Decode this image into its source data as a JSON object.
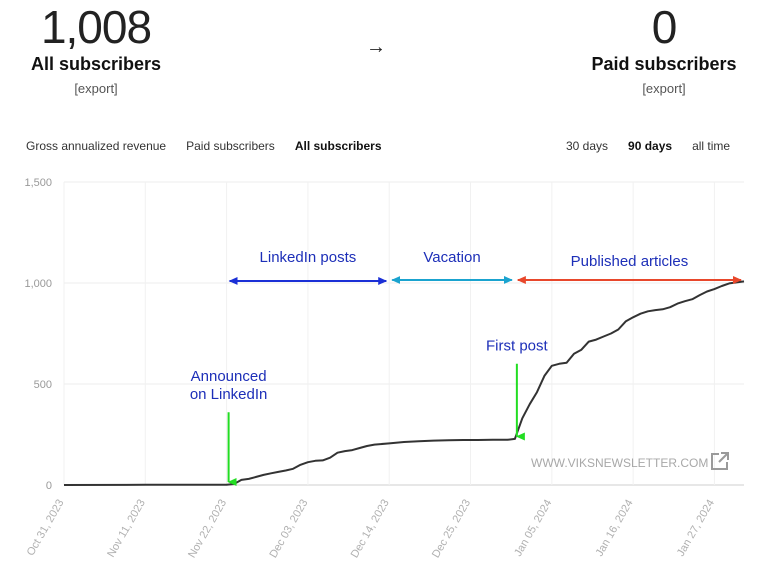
{
  "summary": {
    "all_count": "1,008",
    "all_label": "All subscribers",
    "all_export": "[export]",
    "arrow": "→",
    "paid_count": "0",
    "paid_label": "Paid subscribers",
    "paid_export": "[export]"
  },
  "metric_tabs": [
    {
      "label": "Gross annualized revenue",
      "active": false
    },
    {
      "label": "Paid subscribers",
      "active": false
    },
    {
      "label": "All subscribers",
      "active": true
    }
  ],
  "range_tabs": [
    {
      "label": "30 days",
      "active": false
    },
    {
      "label": "90 days",
      "active": true
    },
    {
      "label": "all time",
      "active": false
    }
  ],
  "watermark": "WWW.VIKSNEWSLETTER.COM",
  "external_link_icon": "external-link-icon",
  "chart_data": {
    "type": "line",
    "ylim": [
      0,
      1500
    ],
    "y_ticks": [
      0,
      500,
      1000,
      1500
    ],
    "y_tick_labels": [
      "0",
      "500",
      "1,000",
      "1,500"
    ],
    "xlim": [
      "2023-10-31",
      "2024-01-31"
    ],
    "x_ticks": [
      "2023-10-31",
      "2023-11-11",
      "2023-11-22",
      "2023-12-03",
      "2023-12-14",
      "2023-12-25",
      "2024-01-05",
      "2024-01-16",
      "2024-01-27"
    ],
    "x_tick_labels": [
      "Oct 31, 2023",
      "Nov 11, 2023",
      "Nov 22, 2023",
      "Dec 03, 2023",
      "Dec 14, 2023",
      "Dec 25, 2023",
      "Jan 05, 2024",
      "Jan 16, 2024",
      "Jan 27, 2024"
    ],
    "series": [
      {
        "color": "#333333",
        "points": [
          [
            "2023-10-31",
            0
          ],
          [
            "2023-11-11",
            1
          ],
          [
            "2023-11-22",
            1
          ],
          [
            "2023-11-23",
            5
          ],
          [
            "2023-11-24",
            25
          ],
          [
            "2023-11-25",
            30
          ],
          [
            "2023-11-26",
            40
          ],
          [
            "2023-11-27",
            50
          ],
          [
            "2023-11-28",
            58
          ],
          [
            "2023-11-29",
            65
          ],
          [
            "2023-11-30",
            72
          ],
          [
            "2023-12-01",
            80
          ],
          [
            "2023-12-02",
            100
          ],
          [
            "2023-12-03",
            113
          ],
          [
            "2023-12-04",
            120
          ],
          [
            "2023-12-05",
            122
          ],
          [
            "2023-12-06",
            135
          ],
          [
            "2023-12-07",
            160
          ],
          [
            "2023-12-08",
            168
          ],
          [
            "2023-12-09",
            173
          ],
          [
            "2023-12-10",
            183
          ],
          [
            "2023-12-11",
            193
          ],
          [
            "2023-12-12",
            200
          ],
          [
            "2023-12-14",
            206
          ],
          [
            "2023-12-16",
            213
          ],
          [
            "2023-12-18",
            217
          ],
          [
            "2023-12-20",
            220
          ],
          [
            "2023-12-22",
            222
          ],
          [
            "2023-12-24",
            223
          ],
          [
            "2023-12-26",
            223
          ],
          [
            "2023-12-28",
            224
          ],
          [
            "2023-12-30",
            224
          ],
          [
            "2023-12-31",
            228
          ],
          [
            "2024-01-01",
            330
          ],
          [
            "2024-01-02",
            400
          ],
          [
            "2024-01-03",
            460
          ],
          [
            "2024-01-04",
            540
          ],
          [
            "2024-01-05",
            590
          ],
          [
            "2024-01-06",
            600
          ],
          [
            "2024-01-07",
            605
          ],
          [
            "2024-01-08",
            650
          ],
          [
            "2024-01-09",
            670
          ],
          [
            "2024-01-10",
            710
          ],
          [
            "2024-01-11",
            720
          ],
          [
            "2024-01-12",
            735
          ],
          [
            "2024-01-13",
            750
          ],
          [
            "2024-01-14",
            770
          ],
          [
            "2024-01-15",
            810
          ],
          [
            "2024-01-16",
            830
          ],
          [
            "2024-01-17",
            848
          ],
          [
            "2024-01-18",
            860
          ],
          [
            "2024-01-19",
            866
          ],
          [
            "2024-01-20",
            870
          ],
          [
            "2024-01-21",
            880
          ],
          [
            "2024-01-22",
            898
          ],
          [
            "2024-01-23",
            910
          ],
          [
            "2024-01-24",
            920
          ],
          [
            "2024-01-25",
            940
          ],
          [
            "2024-01-26",
            958
          ],
          [
            "2024-01-27",
            970
          ],
          [
            "2024-01-28",
            985
          ],
          [
            "2024-01-29",
            998
          ],
          [
            "2024-01-30",
            1003
          ],
          [
            "2024-01-31",
            1008
          ]
        ]
      }
    ],
    "annotations": {
      "ranges": [
        {
          "label": "LinkedIn posts",
          "from": "2023-11-22",
          "to": "2023-12-14",
          "y": 1010,
          "label_y": 1105,
          "color": "#1a2fd6",
          "text_color": "#1d2fb8"
        },
        {
          "label": "Vacation",
          "from": "2023-12-14",
          "to": "2023-12-31",
          "y": 1015,
          "label_y": 1105,
          "color": "#1aa3cf",
          "text_color": "#1d2fb8"
        },
        {
          "label": "Published articles",
          "from": "2023-12-31",
          "to": "2024-01-31",
          "y": 1015,
          "label_y": 1085,
          "color": "#e8472b",
          "text_color": "#1d2fb8"
        }
      ],
      "callouts": [
        {
          "lines": [
            "Announced",
            "on LinkedIn"
          ],
          "x": "2023-11-22",
          "text_y": [
            515,
            425
          ],
          "arrow_from": 360,
          "arrow_to": 5,
          "arrow_color": "#22dd22",
          "text_color": "#1d2fb8"
        },
        {
          "lines": [
            "First post"
          ],
          "x": "2023-12-31",
          "text_y": [
            665
          ],
          "arrow_from": 600,
          "arrow_to": 230,
          "arrow_color": "#22dd22",
          "text_color": "#1d2fb8"
        }
      ]
    }
  }
}
